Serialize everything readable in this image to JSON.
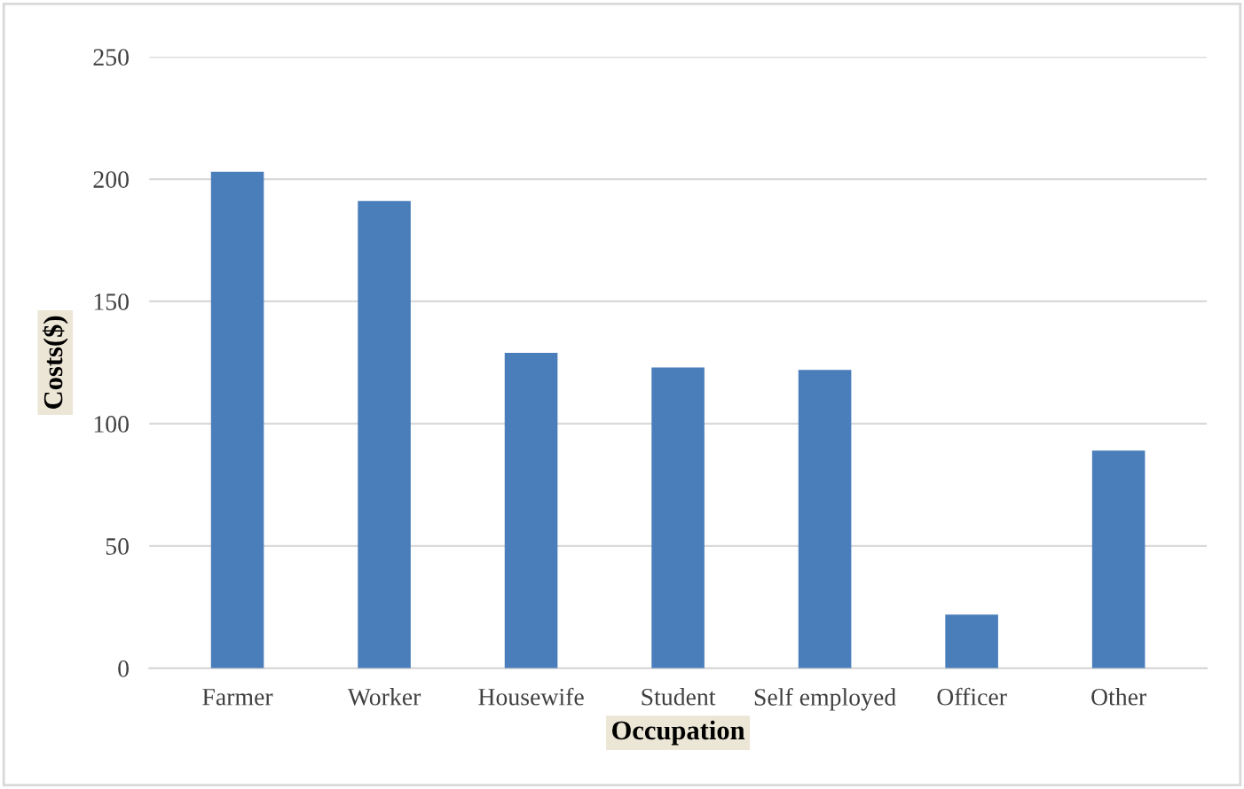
{
  "chart_data": {
    "type": "bar",
    "categories": [
      "Farmer",
      "Worker",
      "Housewife",
      "Student",
      "Self employed",
      "Officer",
      "Other"
    ],
    "values": [
      203,
      191,
      129,
      123,
      122,
      22,
      89
    ],
    "color": "#4a7ebb",
    "xlabel": "Occupation",
    "ylabel": "Costs($)",
    "ylim": [
      0,
      250
    ],
    "yticks": [
      0,
      50,
      100,
      150,
      200,
      250
    ],
    "grid": "y",
    "legend": false
  }
}
